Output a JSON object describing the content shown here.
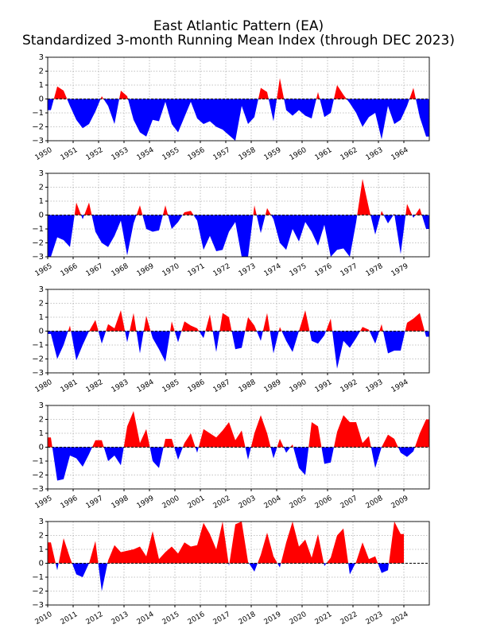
{
  "title": {
    "line1": "East Atlantic Pattern (EA)",
    "line2": "Standardized 3-month Running Mean Index (through DEC 2023)"
  },
  "colors": {
    "positive": "#ff0000",
    "negative": "#0000ff",
    "zero_line": "#000000",
    "grid": "#b0b0b0"
  },
  "chart_data": [
    {
      "type": "area",
      "xlim": [
        "1950-01",
        "1965-01"
      ],
      "ylim": [
        -3,
        3
      ],
      "y_ticks": [
        "−3",
        "−2",
        "−1",
        "0",
        "1",
        "2",
        "3"
      ],
      "x_tick_labels": [
        "1950",
        "1951",
        "1952",
        "1953",
        "1954",
        "1955",
        "1956",
        "1957",
        "1958",
        "1959",
        "1960",
        "1961",
        "1962",
        "1963",
        "1964"
      ],
      "grid": true,
      "quarterly_values": {
        "1950": [
          -0.8,
          0.9,
          0.6,
          -0.5
        ],
        "1951": [
          -1.5,
          -2.1,
          -1.8,
          -0.9
        ],
        "1952": [
          0.2,
          -0.5,
          -1.8,
          0.6
        ],
        "1953": [
          0.2,
          -1.5,
          -2.4,
          -2.7
        ],
        "1954": [
          -1.5,
          -1.6,
          -0.2,
          -1.8
        ],
        "1955": [
          -2.4,
          -1.3,
          -0.2,
          -1.4
        ],
        "1956": [
          -1.8,
          -1.6,
          -2.0,
          -2.2
        ],
        "1957": [
          -2.6,
          -3.0,
          -0.5,
          -1.8
        ],
        "1958": [
          -1.3,
          0.8,
          0.5,
          -1.6
        ],
        "1959": [
          1.5,
          -0.8,
          -1.2,
          -0.8
        ],
        "1960": [
          -1.2,
          -1.4,
          0.5,
          -1.3
        ],
        "1961": [
          -1.0,
          1.0,
          0.3,
          -0.3
        ],
        "1962": [
          -1.0,
          -2.0,
          -1.3,
          -1.0
        ],
        "1963": [
          -2.9,
          -0.5,
          -1.8,
          -1.5
        ],
        "1964": [
          -0.5,
          0.8,
          -1.3,
          -2.7
        ]
      }
    },
    {
      "type": "area",
      "xlim": [
        "1965-01",
        "1980-01"
      ],
      "ylim": [
        -3,
        3
      ],
      "y_ticks": [
        "−3",
        "−2",
        "−1",
        "0",
        "1",
        "2",
        "3"
      ],
      "x_tick_labels": [
        "1965",
        "1966",
        "1967",
        "1968",
        "1969",
        "1970",
        "1971",
        "1972",
        "1973",
        "1974",
        "1975",
        "1976",
        "1977",
        "1978",
        "1979"
      ],
      "grid": true,
      "quarterly_values": {
        "1965": [
          -3.0,
          -1.6,
          -1.8,
          -2.3
        ],
        "1966": [
          0.9,
          -0.3,
          0.9,
          -1.2
        ],
        "1967": [
          -2.0,
          -2.3,
          -1.5,
          -0.4
        ],
        "1968": [
          -2.9,
          -0.6,
          0.7,
          -1.0
        ],
        "1969": [
          -1.2,
          -1.1,
          0.7,
          -1.0
        ],
        "1970": [
          -0.5,
          0.2,
          0.3,
          -0.4
        ],
        "1971": [
          -2.5,
          -1.5,
          -2.6,
          -2.5
        ],
        "1972": [
          -1.2,
          -0.5,
          -3.0,
          -3.0
        ],
        "1973": [
          0.7,
          -1.3,
          0.5,
          -0.3
        ],
        "1974": [
          -2.0,
          -2.5,
          -1.0,
          -1.9
        ],
        "1975": [
          -0.5,
          -1.2,
          -2.2,
          -0.7
        ],
        "1976": [
          -3.0,
          -2.5,
          -2.4,
          -3.0
        ],
        "1977": [
          -0.5,
          2.6,
          0.5,
          -1.4
        ],
        "1978": [
          0.3,
          -0.6,
          0.1,
          -2.8
        ],
        "1979": [
          0.8,
          -0.2,
          0.5,
          -1.0
        ]
      }
    },
    {
      "type": "area",
      "xlim": [
        "1980-01",
        "1995-01"
      ],
      "ylim": [
        -3,
        3
      ],
      "y_ticks": [
        "−3",
        "−2",
        "−1",
        "0",
        "1",
        "2",
        "3"
      ],
      "x_tick_labels": [
        "1980",
        "1981",
        "1982",
        "1983",
        "1984",
        "1985",
        "1986",
        "1987",
        "1988",
        "1989",
        "1990",
        "1991",
        "1992",
        "1993",
        "1994"
      ],
      "grid": true,
      "quarterly_values": {
        "1980": [
          -0.2,
          -2.0,
          -1.0,
          0.4
        ],
        "1981": [
          -2.1,
          -1.0,
          0.0,
          0.8
        ],
        "1982": [
          -0.9,
          0.5,
          0.2,
          1.5
        ],
        "1983": [
          -0.8,
          1.3,
          -1.6,
          1.1
        ],
        "1984": [
          -0.5,
          -1.3,
          -2.2,
          0.7
        ],
        "1985": [
          -0.8,
          0.7,
          0.4,
          0.2
        ],
        "1986": [
          -0.5,
          1.2,
          -1.5,
          1.3
        ],
        "1987": [
          1.0,
          -1.3,
          -1.2,
          1.0
        ],
        "1988": [
          0.4,
          -0.7,
          1.3,
          -1.6
        ],
        "1989": [
          0.3,
          -0.7,
          -1.5,
          0.0
        ],
        "1990": [
          1.5,
          -0.7,
          -0.9,
          -0.3
        ],
        "1991": [
          0.9,
          -2.7,
          -0.7,
          -1.2
        ],
        "1992": [
          -0.5,
          0.3,
          0.1,
          -0.9
        ],
        "1993": [
          0.5,
          -1.6,
          -1.4,
          -1.4
        ],
        "1994": [
          0.6,
          0.9,
          1.3,
          -0.4
        ]
      }
    },
    {
      "type": "area",
      "xlim": [
        "1995-01",
        "2010-01"
      ],
      "ylim": [
        -3,
        3
      ],
      "y_ticks": [
        "−3",
        "−2",
        "−1",
        "0",
        "1",
        "2",
        "3"
      ],
      "x_tick_labels": [
        "1995",
        "1996",
        "1997",
        "1998",
        "1999",
        "2000",
        "2001",
        "2002",
        "2003",
        "2004",
        "2005",
        "2006",
        "2007",
        "2008",
        "2009"
      ],
      "grid": true,
      "quarterly_values": {
        "1995": [
          0.7,
          -2.4,
          -2.3,
          -0.6
        ],
        "1996": [
          -0.8,
          -1.4,
          -0.5,
          0.5
        ],
        "1997": [
          0.5,
          -1.0,
          -0.6,
          -1.3
        ],
        "1998": [
          1.5,
          2.6,
          0.3,
          1.3
        ],
        "1999": [
          -1.0,
          -1.5,
          0.6,
          0.6
        ],
        "2000": [
          -0.9,
          0.3,
          1.0,
          -0.4
        ],
        "2001": [
          1.3,
          1.0,
          0.7,
          1.2
        ],
        "2002": [
          1.8,
          0.5,
          1.2,
          -0.9
        ],
        "2003": [
          1.0,
          2.3,
          1.0,
          -0.8
        ],
        "2004": [
          0.6,
          -0.4,
          0.2,
          -1.5
        ],
        "2005": [
          -2.0,
          1.8,
          1.5,
          -1.2
        ],
        "2006": [
          -1.1,
          1.1,
          2.3,
          1.8
        ],
        "2007": [
          1.8,
          0.3,
          0.8,
          -1.5
        ],
        "2008": [
          0.0,
          0.9,
          0.6,
          -0.4
        ],
        "2009": [
          -0.7,
          -0.3,
          1.0,
          2.0
        ]
      }
    },
    {
      "type": "area",
      "xlim": [
        "2010-01",
        "2025-01"
      ],
      "ylim": [
        -3,
        3
      ],
      "y_ticks": [
        "−3",
        "−2",
        "−1",
        "0",
        "1",
        "2",
        "3"
      ],
      "x_tick_labels": [
        "2010",
        "2011",
        "2012",
        "2013",
        "2014",
        "2015",
        "2016",
        "2017",
        "2018",
        "2019",
        "2020",
        "2021",
        "2022",
        "2023",
        "2024"
      ],
      "grid": true,
      "quarterly_values": {
        "2010": [
          1.5,
          -0.5,
          1.8,
          0.4
        ],
        "2011": [
          -0.8,
          -1.0,
          0.0,
          1.6
        ],
        "2012": [
          -2.0,
          0.2,
          1.3,
          0.8
        ],
        "2013": [
          0.9,
          1.0,
          1.2,
          0.5
        ],
        "2014": [
          2.3,
          0.3,
          0.8,
          1.2
        ],
        "2015": [
          0.7,
          1.5,
          1.2,
          1.3
        ],
        "2016": [
          2.9,
          2.1,
          1.0,
          3.0
        ],
        "2017": [
          -0.2,
          2.8,
          3.0,
          0.1
        ],
        "2018": [
          -0.6,
          0.6,
          2.2,
          0.5
        ],
        "2019": [
          -0.3,
          1.5,
          3.0,
          1.2
        ],
        "2020": [
          1.7,
          0.4,
          2.1,
          -0.2
        ],
        "2021": [
          0.4,
          2.0,
          2.5,
          -0.8
        ],
        "2022": [
          0.1,
          1.5,
          0.3,
          0.5
        ],
        "2023": [
          -0.7,
          -0.5,
          3.0,
          2.1
        ]
      }
    }
  ]
}
